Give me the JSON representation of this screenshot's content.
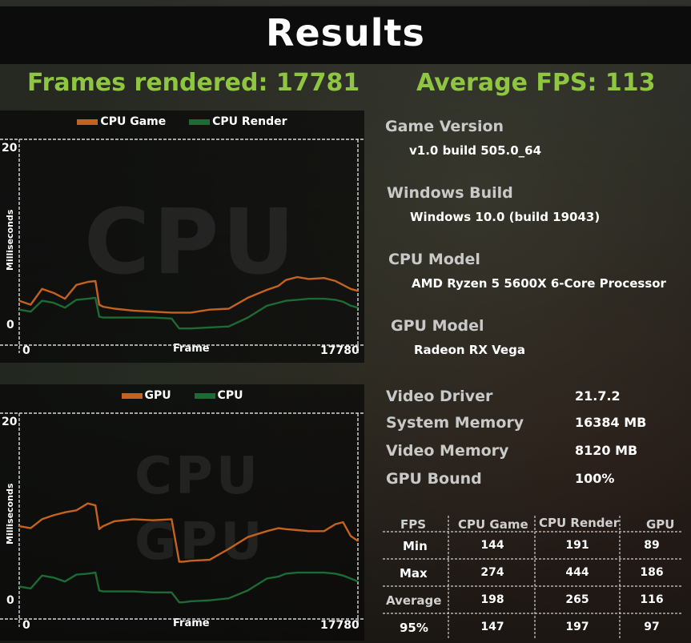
{
  "title": "Results",
  "frames_rendered": "Frames rendered: 17781",
  "average_fps": "Average FPS: 113",
  "cpu_chart": {
    "legend": [
      "CPU Game",
      "CPU Render"
    ],
    "colors": [
      "#c4621e",
      "#1c6b35"
    ],
    "watermark": "CPU",
    "y_label": "Milliseconds",
    "y_top": "20",
    "y_bottom": "0",
    "x_label": "Frame",
    "x_start": "0",
    "x_end": "17780"
  },
  "gpu_chart": {
    "legend": [
      "GPU",
      "CPU"
    ],
    "colors": [
      "#c4621e",
      "#1c6b35"
    ],
    "watermark_top": "CPU",
    "watermark_bottom": "GPU",
    "y_label": "Milliseconds",
    "y_top": "20",
    "y_bottom": "0",
    "x_label": "Frame",
    "x_start": "0",
    "x_end": "17780"
  },
  "info": {
    "game_version_label": "Game Version",
    "game_version": "v1.0 build 505.0_64",
    "windows_build_label": "Windows Build",
    "windows_build": "Windows 10.0 (build 19043)",
    "cpu_model_label": "CPU Model",
    "cpu_model": "AMD Ryzen 5 5600X 6-Core Processor",
    "gpu_model_label": "GPU Model",
    "gpu_model": "Radeon RX Vega",
    "video_driver_label": "Video Driver",
    "video_driver": "21.7.2",
    "system_memory_label": "System Memory",
    "system_memory": "16384 MB",
    "video_memory_label": "Video Memory",
    "video_memory": "8120 MB",
    "gpu_bound_label": "GPU Bound",
    "gpu_bound": "100%"
  },
  "fps_table": {
    "headers": [
      "FPS",
      "CPU Game",
      "CPU Render",
      "GPU"
    ],
    "rows": [
      {
        "label": "Min",
        "cpu_game": "144",
        "cpu_render": "191",
        "gpu": "89"
      },
      {
        "label": "Max",
        "cpu_game": "274",
        "cpu_render": "444",
        "gpu": "186"
      },
      {
        "label": "Average",
        "cpu_game": "198",
        "cpu_render": "265",
        "gpu": "116"
      },
      {
        "label": "95%",
        "cpu_game": "147",
        "cpu_render": "197",
        "gpu": "97"
      }
    ]
  },
  "chart_data": [
    {
      "type": "line",
      "title": "",
      "xlabel": "Frame",
      "ylabel": "Milliseconds",
      "xlim": [
        0,
        17780
      ],
      "ylim": [
        0,
        20
      ],
      "x": [
        0,
        600,
        1200,
        1800,
        2400,
        3000,
        3600,
        4000,
        4200,
        4400,
        5000,
        6000,
        7000,
        8000,
        8400,
        8600,
        9000,
        10000,
        11000,
        12000,
        13000,
        13600,
        14000,
        14600,
        15200,
        16000,
        16600,
        17000,
        17400,
        17780
      ],
      "series": [
        {
          "name": "CPU Game",
          "values": [
            4.0,
            3.6,
            5.2,
            4.8,
            4.2,
            5.6,
            5.9,
            6.0,
            3.6,
            3.4,
            3.2,
            3.0,
            2.9,
            2.8,
            2.8,
            2.8,
            2.8,
            3.1,
            3.2,
            4.3,
            5.1,
            5.5,
            6.1,
            6.4,
            6.2,
            6.3,
            6.0,
            5.6,
            5.2,
            5.0
          ]
        },
        {
          "name": "CPU Render",
          "values": [
            3.1,
            2.9,
            4.0,
            3.8,
            3.3,
            4.1,
            4.2,
            4.3,
            2.4,
            2.3,
            2.3,
            2.3,
            2.3,
            2.2,
            1.2,
            1.2,
            1.2,
            1.3,
            1.4,
            2.3,
            3.5,
            3.8,
            4.0,
            4.1,
            4.2,
            4.2,
            4.1,
            3.9,
            3.5,
            3.3
          ]
        }
      ]
    },
    {
      "type": "line",
      "title": "",
      "xlabel": "Frame",
      "ylabel": "Milliseconds",
      "xlim": [
        0,
        17780
      ],
      "ylim": [
        0,
        20
      ],
      "x": [
        0,
        600,
        1200,
        1800,
        2400,
        3000,
        3600,
        4000,
        4200,
        4400,
        5000,
        6000,
        7000,
        8000,
        8400,
        8600,
        9000,
        10000,
        11000,
        12000,
        13000,
        13600,
        14000,
        14600,
        15200,
        16000,
        16600,
        17000,
        17400,
        17780
      ],
      "series": [
        {
          "name": "GPU",
          "values": [
            8.9,
            8.7,
            9.6,
            10.0,
            10.3,
            10.5,
            11.2,
            11.0,
            8.6,
            8.9,
            9.4,
            9.6,
            9.5,
            9.6,
            5.3,
            5.3,
            5.4,
            5.5,
            6.6,
            7.8,
            8.4,
            8.7,
            8.6,
            8.5,
            8.4,
            8.4,
            9.1,
            9.3,
            7.9,
            7.4
          ]
        },
        {
          "name": "CPU",
          "values": [
            2.8,
            2.6,
            3.9,
            3.7,
            3.3,
            4.0,
            4.1,
            4.2,
            2.4,
            2.3,
            2.3,
            2.3,
            2.2,
            2.2,
            1.2,
            1.2,
            1.3,
            1.4,
            1.6,
            2.4,
            3.6,
            3.8,
            4.1,
            4.2,
            4.2,
            4.2,
            4.1,
            3.9,
            3.6,
            3.3
          ]
        }
      ]
    }
  ]
}
